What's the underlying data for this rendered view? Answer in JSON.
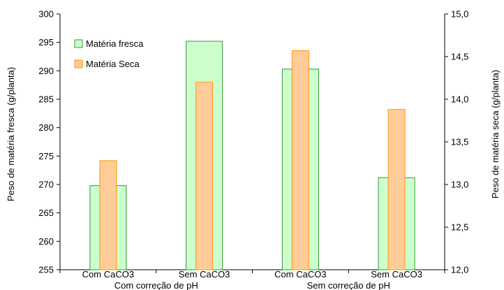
{
  "chart_data": {
    "type": "bar",
    "title": "",
    "categories": [
      "Com CaCO3",
      "Sem CaCO3",
      "Com CaCO3",
      "Sem CaCO3"
    ],
    "groups": [
      {
        "label": "Com correção de pH",
        "categories": [
          0,
          1
        ]
      },
      {
        "label": "Sem correção de pH",
        "categories": [
          2,
          3
        ]
      }
    ],
    "series": [
      {
        "name": "Matéria fresca",
        "axis": "left",
        "values": [
          269.8,
          295.2,
          290.3,
          271.2
        ],
        "fill": "#ccffcc",
        "stroke": "#339933"
      },
      {
        "name": "Matéria Seca",
        "axis": "right",
        "values": [
          13.28,
          14.2,
          14.57,
          13.88
        ],
        "fill": "#ffcc99",
        "stroke": "#ff9900"
      }
    ],
    "ylabel_left": "Peso de matéria fresca (g/planta)",
    "ylabel_right": "Peso de matéria seca (g/planta)",
    "ylim_left": [
      255,
      300
    ],
    "yticks_left": [
      "255",
      "260",
      "265",
      "270",
      "275",
      "280",
      "285",
      "290",
      "295",
      "300"
    ],
    "ylim_right": [
      12.0,
      15.0
    ],
    "yticks_right": [
      "12,0",
      "12,5",
      "13,0",
      "13,5",
      "14,0",
      "14,5",
      "15,0"
    ],
    "legend_position": "top-left",
    "grid": false
  }
}
